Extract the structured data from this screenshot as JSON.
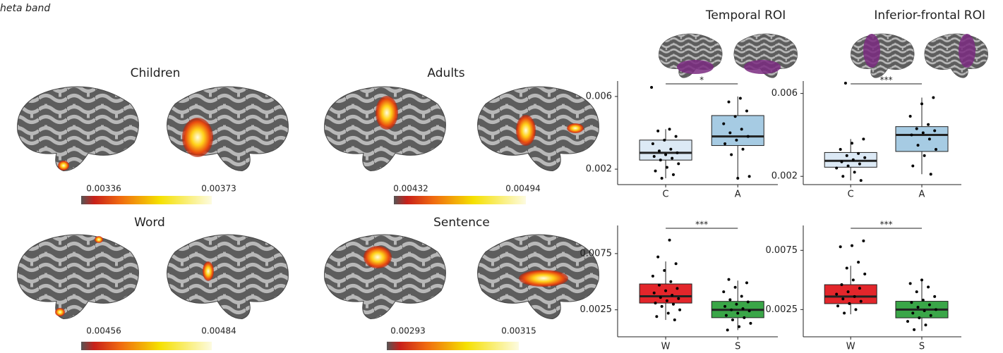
{
  "panel_label": "heta band",
  "brain_maps": [
    {
      "title": "Children",
      "colorbar_ticks": [
        0.00336,
        0.00373
      ]
    },
    {
      "title": "Adults",
      "colorbar_ticks": [
        0.00432,
        0.00494
      ]
    },
    {
      "title": "Word",
      "colorbar_ticks": [
        0.00456,
        0.00484
      ]
    },
    {
      "title": "Sentence",
      "colorbar_ticks": [
        0.00293,
        0.00315
      ]
    }
  ],
  "chart_data": [
    {
      "type": "box",
      "title": "Temporal ROI",
      "significance": "*",
      "ylim": [
        0.00115,
        0.00685
      ],
      "yticks": [
        0.002,
        0.006
      ],
      "groups": [
        {
          "label": "C",
          "color": "#dce9f5",
          "whisker_low": 0.0015,
          "q1": 0.0025,
          "median": 0.0029,
          "q3": 0.0036,
          "whisker_high": 0.0042,
          "points": [
            0.0065,
            0.0042,
            0.0041,
            0.0038,
            0.0036,
            0.0034,
            0.0031,
            0.003,
            0.0029,
            0.0028,
            0.0027,
            0.0026,
            0.0025,
            0.0023,
            0.0021,
            0.0019,
            0.0017,
            0.0015
          ]
        },
        {
          "label": "A",
          "color": "#a6cbe3",
          "whisker_low": 0.0015,
          "q1": 0.0033,
          "median": 0.0038,
          "q3": 0.00495,
          "whisker_high": 0.006,
          "points": [
            0.0059,
            0.0057,
            0.0052,
            0.0049,
            0.0045,
            0.0042,
            0.004,
            0.0038,
            0.0036,
            0.0034,
            0.0031,
            0.0028,
            0.0016,
            0.0015
          ]
        }
      ]
    },
    {
      "type": "box",
      "title": "Inferior-frontal ROI",
      "significance": "***",
      "ylim": [
        0.0016,
        0.0066
      ],
      "yticks": [
        0.002,
        0.006
      ],
      "groups": [
        {
          "label": "C",
          "color": "#dce9f5",
          "whisker_low": 0.0018,
          "q1": 0.00244,
          "median": 0.00275,
          "q3": 0.00315,
          "whisker_high": 0.0038,
          "points": [
            0.0065,
            0.0038,
            0.0036,
            0.0033,
            0.0031,
            0.003,
            0.0029,
            0.0028,
            0.0027,
            0.0026,
            0.0025,
            0.0024,
            0.0022,
            0.002,
            0.0018
          ]
        },
        {
          "label": "A",
          "color": "#a6cbe3",
          "whisker_low": 0.0021,
          "q1": 0.0032,
          "median": 0.004,
          "q3": 0.0044,
          "whisker_high": 0.0058,
          "points": [
            0.0058,
            0.0055,
            0.0049,
            0.0045,
            0.0043,
            0.0042,
            0.0041,
            0.004,
            0.0038,
            0.0035,
            0.0033,
            0.003,
            0.0025,
            0.0021
          ]
        }
      ]
    },
    {
      "type": "box",
      "significance": "***",
      "ylim": [
        0.0001,
        0.01
      ],
      "yticks": [
        0.0025,
        0.0075
      ],
      "groups": [
        {
          "label": "W",
          "color": "#e3262b",
          "whisker_low": 0.0016,
          "q1": 0.0031,
          "median": 0.0037,
          "q3": 0.0048,
          "whisker_high": 0.0068,
          "points": [
            0.0087,
            0.0072,
            0.0066,
            0.006,
            0.0055,
            0.005,
            0.0047,
            0.0044,
            0.0042,
            0.004,
            0.0038,
            0.0036,
            0.0035,
            0.0033,
            0.0031,
            0.003,
            0.0028,
            0.0025,
            0.0022,
            0.0019,
            0.0016
          ]
        },
        {
          "label": "S",
          "color": "#3aa648",
          "whisker_low": 0.0007,
          "q1": 0.0018,
          "median": 0.0025,
          "q3": 0.00325,
          "whisker_high": 0.0051,
          "points": [
            0.0052,
            0.0049,
            0.0045,
            0.0041,
            0.0037,
            0.0034,
            0.0032,
            0.003,
            0.0028,
            0.0026,
            0.0025,
            0.0024,
            0.0022,
            0.002,
            0.0018,
            0.0016,
            0.0013,
            0.001,
            0.0007
          ]
        }
      ]
    },
    {
      "type": "box",
      "significance": "***",
      "ylim": [
        0.0002,
        0.0096
      ],
      "yticks": [
        0.0025,
        0.0075
      ],
      "groups": [
        {
          "label": "W",
          "color": "#e3262b",
          "whisker_low": 0.0021,
          "q1": 0.003,
          "median": 0.0036,
          "q3": 0.0046,
          "whisker_high": 0.0062,
          "points": [
            0.0083,
            0.0079,
            0.0078,
            0.0065,
            0.006,
            0.0055,
            0.005,
            0.0046,
            0.0043,
            0.004,
            0.0038,
            0.0036,
            0.0034,
            0.0032,
            0.003,
            0.0028,
            0.0025,
            0.0022
          ]
        },
        {
          "label": "S",
          "color": "#3aa648",
          "whisker_low": 0.0007,
          "q1": 0.0018,
          "median": 0.0025,
          "q3": 0.0032,
          "whisker_high": 0.0049,
          "points": [
            0.005,
            0.0047,
            0.0044,
            0.004,
            0.0036,
            0.0033,
            0.0031,
            0.0029,
            0.0027,
            0.0025,
            0.0024,
            0.0022,
            0.002,
            0.0018,
            0.0015,
            0.0012,
            0.0008
          ]
        }
      ]
    }
  ]
}
